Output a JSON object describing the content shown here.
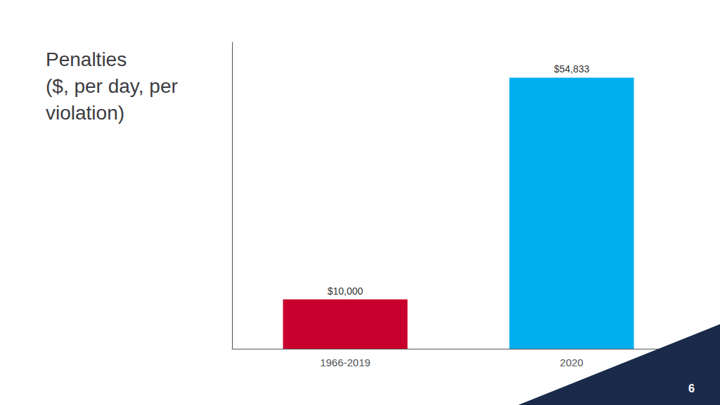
{
  "chart_data": {
    "type": "bar",
    "title": "Penalties\n($, per day, per\nviolation)",
    "categories": [
      "1966-2019",
      "2020"
    ],
    "values": [
      10000,
      54833
    ],
    "value_labels": [
      "$10,000",
      "$54,833"
    ],
    "colors": [
      "#C8002D",
      "#00AEEF"
    ],
    "ylim": [
      0,
      62000
    ],
    "tick_labels": "x",
    "data_labels": true,
    "grid": false,
    "annotations": [
      "6"
    ]
  }
}
